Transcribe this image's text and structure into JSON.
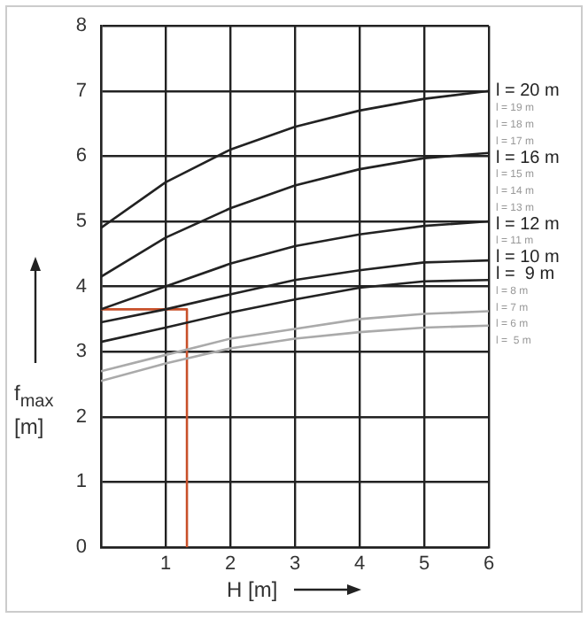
{
  "chart_data": {
    "type": "line",
    "xlabel": "H [m]",
    "ylabel": "f$_{max}$ [m]",
    "xlim": [
      0,
      6
    ],
    "ylim": [
      0,
      8
    ],
    "xticks": [
      {
        "value": 0,
        "label": null
      },
      1,
      2,
      3,
      4,
      5,
      6
    ],
    "yticks": [
      0,
      1,
      2,
      3,
      4,
      5,
      6,
      7,
      8
    ],
    "grid": true,
    "legend": false,
    "marker": "none",
    "line_style": "solid",
    "series": [
      {
        "name": "l = 20 m",
        "color": "#222222",
        "x": [
          0,
          1,
          2,
          3,
          4,
          5,
          6
        ],
        "values": [
          4.9,
          5.6,
          6.1,
          6.45,
          6.7,
          6.88,
          7.0
        ]
      },
      {
        "name": "l = 16 m",
        "color": "#222222",
        "x": [
          0,
          1,
          2,
          3,
          4,
          5,
          6
        ],
        "values": [
          4.15,
          4.75,
          5.2,
          5.55,
          5.8,
          5.97,
          6.05
        ]
      },
      {
        "name": "l = 12 m",
        "color": "#222222",
        "x": [
          0,
          1,
          2,
          3,
          4,
          5,
          6
        ],
        "values": [
          3.65,
          4.0,
          4.35,
          4.62,
          4.8,
          4.93,
          5.0
        ]
      },
      {
        "name": "l = 10 m",
        "color": "#222222",
        "x": [
          0,
          1,
          2,
          3,
          4,
          5,
          6
        ],
        "values": [
          3.45,
          3.65,
          3.88,
          4.1,
          4.25,
          4.37,
          4.4
        ]
      },
      {
        "name": "l =  9 m",
        "color": "#222222",
        "x": [
          0,
          1,
          2,
          3,
          4,
          5,
          6
        ],
        "values": [
          3.15,
          3.37,
          3.6,
          3.8,
          3.98,
          4.08,
          4.1
        ]
      },
      {
        "name": "l = 7 m",
        "color": "#aaaaaa",
        "x": [
          0,
          1,
          2,
          3,
          4,
          5,
          6
        ],
        "values": [
          2.7,
          2.95,
          3.2,
          3.35,
          3.5,
          3.58,
          3.62
        ]
      },
      {
        "name": "l = 6 m",
        "color": "#aaaaaa",
        "x": [
          0,
          1,
          2,
          3,
          4,
          5,
          6
        ],
        "values": [
          2.55,
          2.82,
          3.05,
          3.2,
          3.3,
          3.37,
          3.4
        ]
      },
      {
        "color": "#c8502a",
        "x": [
          1.33,
          1.33,
          0
        ],
        "values": [
          0,
          3.65,
          3.65
        ]
      }
    ],
    "annotations": [
      "l = 19 m",
      "l = 18 m",
      "l = 17 m",
      "l = 15 m",
      "l = 14 m",
      "l = 13 m",
      "l = 11 m",
      "l = 8 m",
      "l =  5 m"
    ]
  }
}
